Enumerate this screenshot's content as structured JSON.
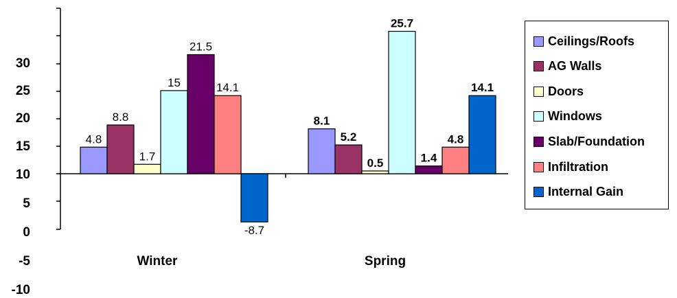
{
  "chart_data": {
    "type": "bar",
    "categories": [
      "Winter",
      "Spring"
    ],
    "y_tick_labels": [
      "30",
      "25",
      "20",
      "15",
      "10",
      "5",
      "0",
      "-5",
      "-10"
    ],
    "series": [
      {
        "name": "Ceilings/Roofs",
        "color": "#9999ff",
        "values": [
          4.8,
          8.1
        ]
      },
      {
        "name": "AG Walls",
        "color": "#993366",
        "values": [
          8.8,
          5.2
        ]
      },
      {
        "name": "Doors",
        "color": "#ffffcc",
        "values": [
          1.7,
          0.5
        ]
      },
      {
        "name": "Windows",
        "color": "#ccffff",
        "values": [
          15,
          25.7
        ]
      },
      {
        "name": "Slab/Foundation",
        "color": "#660066",
        "values": [
          21.5,
          1.4
        ]
      },
      {
        "name": "Infiltration",
        "color": "#ff8080",
        "values": [
          14.1,
          4.8
        ]
      },
      {
        "name": "Internal Gain",
        "color": "#0066cc",
        "values": [
          -8.7,
          14.1
        ]
      }
    ],
    "data_label_text": [
      [
        "4.8",
        "8.8",
        "1.7",
        "15",
        "21.5",
        "14.1",
        "-8.7"
      ],
      [
        "8.1",
        "5.2",
        "0.5",
        "25.7",
        "1.4",
        "4.8",
        "14.1"
      ]
    ],
    "data_labels_bold": [
      false,
      true
    ],
    "ylim": [
      -20,
      30
    ],
    "legend_position": "right",
    "grid": false
  }
}
